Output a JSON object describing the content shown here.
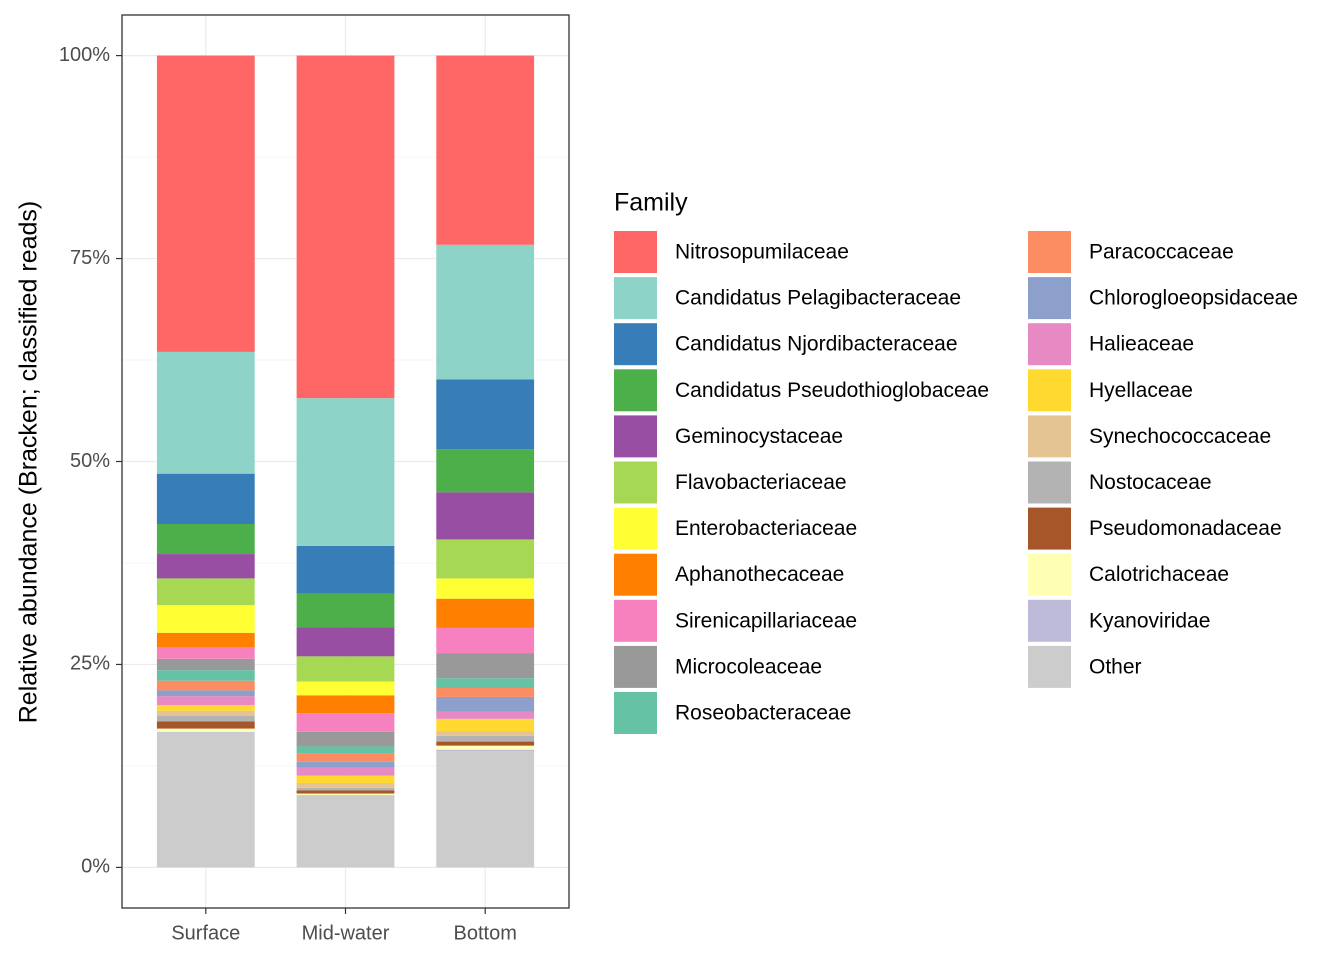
{
  "chart_data": {
    "type": "stacked_bar",
    "y_label": "Relative abundance (Bracken; classified reads)",
    "legend_title": "Family",
    "categories": [
      "Surface",
      "Mid-water",
      "Bottom"
    ],
    "ylim": [
      -5,
      105
    ],
    "yticks": [
      {
        "value": 0,
        "label": "0%"
      },
      {
        "value": 25,
        "label": "25%"
      },
      {
        "value": 50,
        "label": "50%"
      },
      {
        "value": 75,
        "label": "75%"
      },
      {
        "value": 100,
        "label": "100%"
      }
    ],
    "grid": true,
    "legend_position": "right",
    "series": [
      {
        "name": "Nitrosopumilaceae",
        "color": "#ff6666",
        "values": [
          36.5,
          42.2,
          23.3
        ]
      },
      {
        "name": "Candidatus Pelagibacteraceae",
        "color": "#8dd3c7",
        "values": [
          15.0,
          18.2,
          16.6
        ]
      },
      {
        "name": "Candidatus Njordibacteraceae",
        "color": "#377eb8",
        "values": [
          6.2,
          5.9,
          8.6
        ]
      },
      {
        "name": "Candidatus Pseudothioglobaceae",
        "color": "#4daf4a",
        "values": [
          3.7,
          4.1,
          5.3
        ]
      },
      {
        "name": "Geminocystaceae",
        "color": "#984ea3",
        "values": [
          3.0,
          3.6,
          5.8
        ]
      },
      {
        "name": "Flavobacteriaceae",
        "color": "#a6d854",
        "values": [
          3.3,
          3.1,
          4.8
        ]
      },
      {
        "name": "Enterobacteriaceae",
        "color": "#ffff33",
        "values": [
          3.4,
          1.7,
          2.5
        ]
      },
      {
        "name": "Aphanothecaceae",
        "color": "#ff7f00",
        "values": [
          1.8,
          2.2,
          3.6
        ]
      },
      {
        "name": "Sirenicapillariaceae",
        "color": "#f781bf",
        "values": [
          1.4,
          2.3,
          3.1
        ]
      },
      {
        "name": "Microcoleaceae",
        "color": "#999999",
        "values": [
          1.4,
          1.8,
          3.1
        ]
      },
      {
        "name": "Roseobacteraceae",
        "color": "#66c2a5",
        "values": [
          1.3,
          0.9,
          1.2
        ]
      },
      {
        "name": "Paracoccaceae",
        "color": "#fc8d62",
        "values": [
          1.2,
          1.0,
          1.1
        ]
      },
      {
        "name": "Chlorogloeopsidaceae",
        "color": "#8da0cb",
        "values": [
          0.7,
          0.7,
          1.8
        ]
      },
      {
        "name": "Halieaceae",
        "color": "#e78ac3",
        "values": [
          1.1,
          1.0,
          0.9
        ]
      },
      {
        "name": "Hyellaceae",
        "color": "#ffd92f",
        "values": [
          0.7,
          0.9,
          1.5
        ]
      },
      {
        "name": "Synechococcaceae",
        "color": "#e5c494",
        "values": [
          0.6,
          0.6,
          0.6
        ]
      },
      {
        "name": "Nostocaceae",
        "color": "#b3b3b3",
        "values": [
          0.7,
          0.3,
          0.7
        ]
      },
      {
        "name": "Pseudomonadaceae",
        "color": "#a65628",
        "values": [
          0.9,
          0.4,
          0.5
        ]
      },
      {
        "name": "Calotrichaceae",
        "color": "#ffffb3",
        "values": [
          0.4,
          0.2,
          0.5
        ]
      },
      {
        "name": "Kyanoviridae",
        "color": "#bebada",
        "values": [
          0.1,
          0.1,
          0.2
        ]
      },
      {
        "name": "Other",
        "color": "#cccccc",
        "values": [
          16.6,
          8.8,
          14.3
        ]
      }
    ]
  }
}
